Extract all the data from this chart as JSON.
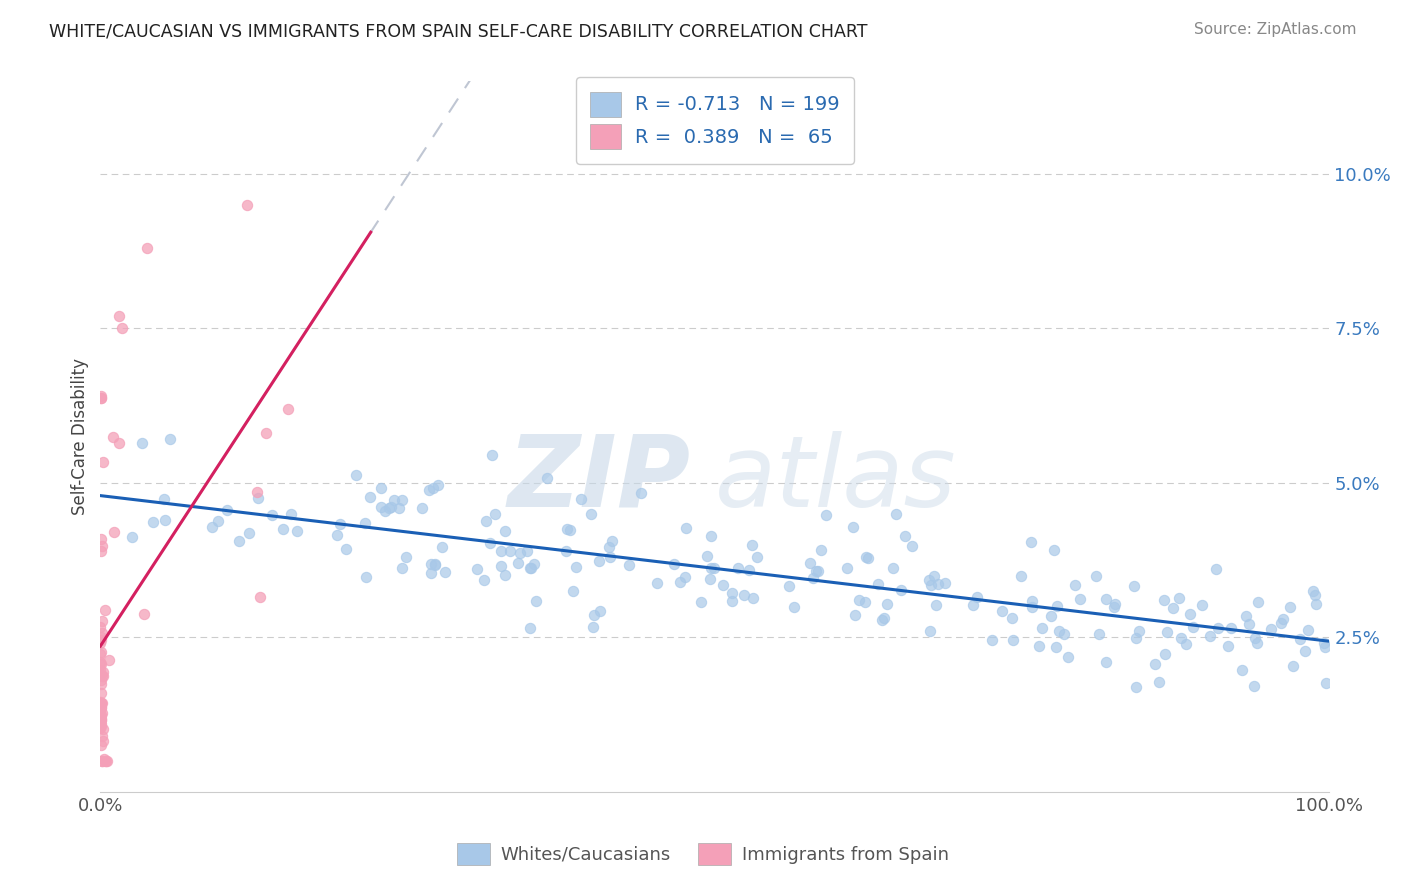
{
  "title": "WHITE/CAUCASIAN VS IMMIGRANTS FROM SPAIN SELF-CARE DISABILITY CORRELATION CHART",
  "source": "Source: ZipAtlas.com",
  "ylabel": "Self-Care Disability",
  "watermark_zip": "ZIP",
  "watermark_atlas": "atlas",
  "blue_R": -0.713,
  "blue_N": 199,
  "pink_R": 0.389,
  "pink_N": 65,
  "blue_color": "#a8c8e8",
  "pink_color": "#f4a0b8",
  "blue_line_color": "#1a5fb5",
  "pink_line_color": "#d42060",
  "gray_dash_color": "#b0b8c8",
  "blue_label": "Whites/Caucasians",
  "pink_label": "Immigrants from Spain",
  "x_min": 0.0,
  "x_max": 1.0,
  "y_min": 0.0,
  "y_max": 0.115,
  "y_ticks": [
    0.025,
    0.05,
    0.075,
    0.1
  ],
  "y_tick_labels": [
    "2.5%",
    "5.0%",
    "7.5%",
    "10.0%"
  ],
  "x_ticks": [
    0.0,
    0.25,
    0.5,
    0.75,
    1.0
  ],
  "x_tick_labels": [
    "0.0%",
    "",
    "",
    "",
    "100.0%"
  ],
  "background_color": "#ffffff",
  "grid_color": "#cccccc"
}
